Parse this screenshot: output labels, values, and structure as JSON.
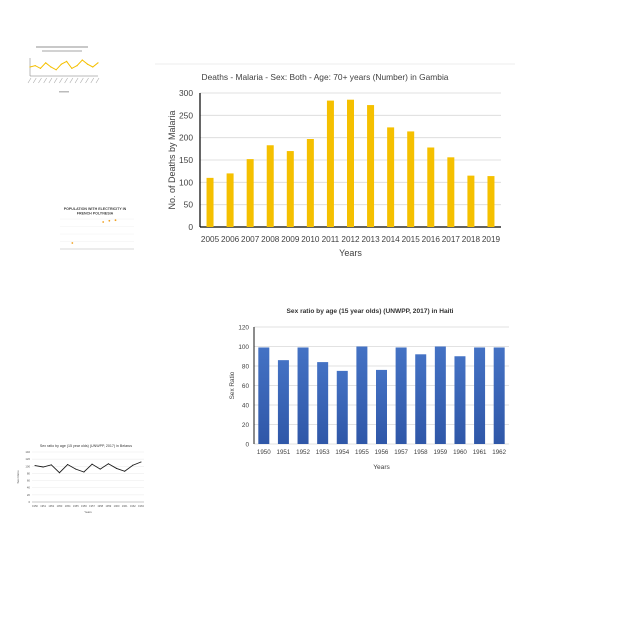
{
  "colors": {
    "malaria_bar": "#f5c000",
    "haiti_bar": "#4472c4",
    "haiti_bar_dark": "#2f57a8",
    "belarus_line": "#1a1a1a",
    "polynesia_point": "#f0a020"
  },
  "chart_data": [
    {
      "id": "gambia",
      "type": "bar",
      "title": "Deaths - Malaria - Sex: Both - Age: 70+ years (Number) in Gambia",
      "xlabel": "Years",
      "ylabel": "No. of Deaths by Malaria",
      "ylim": [
        0,
        300
      ],
      "yticks": [
        "0",
        "50",
        "100",
        "150",
        "200",
        "250",
        "300"
      ],
      "grid": true,
      "categories": [
        "2005",
        "2006",
        "2007",
        "2008",
        "2009",
        "2010",
        "2011",
        "2012",
        "2013",
        "2014",
        "2015",
        "2016",
        "2017",
        "2018",
        "2019"
      ],
      "values": [
        110,
        120,
        152,
        183,
        170,
        197,
        283,
        285,
        273,
        223,
        214,
        178,
        156,
        115,
        114
      ]
    },
    {
      "id": "haiti",
      "type": "bar",
      "title": "Sex ratio by age (15 year olds) (UNWPP, 2017) in Haiti",
      "xlabel": "Years",
      "ylabel": "Sex Ratio",
      "ylim": [
        0,
        120
      ],
      "yticks": [
        "0",
        "20",
        "40",
        "60",
        "80",
        "100",
        "120"
      ],
      "grid": true,
      "categories": [
        "1950",
        "1951",
        "1952",
        "1953",
        "1954",
        "1955",
        "1956",
        "1957",
        "1958",
        "1959",
        "1960",
        "1961",
        "1962"
      ],
      "values": [
        99,
        86,
        99,
        84,
        75,
        100,
        76,
        99,
        92,
        100,
        90,
        99,
        99
      ]
    },
    {
      "id": "thumb_line_yellow",
      "type": "line",
      "title": "",
      "xlabel": "",
      "ylabel": "",
      "values": [
        5,
        6,
        4,
        8,
        5,
        3,
        7,
        9,
        4,
        6,
        10,
        7,
        5,
        8
      ]
    },
    {
      "id": "polynesia",
      "type": "scatter",
      "title": "POPULATION WITH ELECTRICITY IN FRENCH POLYNESIA",
      "xlabel": "",
      "ylabel": "",
      "points": [
        {
          "x": 2,
          "y": 20
        },
        {
          "x": 7,
          "y": 90
        },
        {
          "x": 8,
          "y": 94
        },
        {
          "x": 9,
          "y": 96
        }
      ]
    },
    {
      "id": "belarus",
      "type": "line",
      "title": "Sex ratio by age (15 year olds) (UNWPP, 2017) in Belarus",
      "xlabel": "Years",
      "ylabel": "Sex Ratio",
      "ylim": [
        0,
        140
      ],
      "yticks": [
        "0",
        "20",
        "40",
        "60",
        "80",
        "100",
        "120",
        "140"
      ],
      "categories": [
        "1950",
        "1951",
        "1952",
        "1953",
        "1954",
        "1955",
        "1956",
        "1957",
        "1958",
        "1959",
        "1960",
        "1961",
        "1962",
        "1963"
      ],
      "values": [
        102,
        98,
        104,
        82,
        105,
        92,
        84,
        106,
        92,
        107,
        94,
        86,
        103,
        112
      ]
    }
  ]
}
